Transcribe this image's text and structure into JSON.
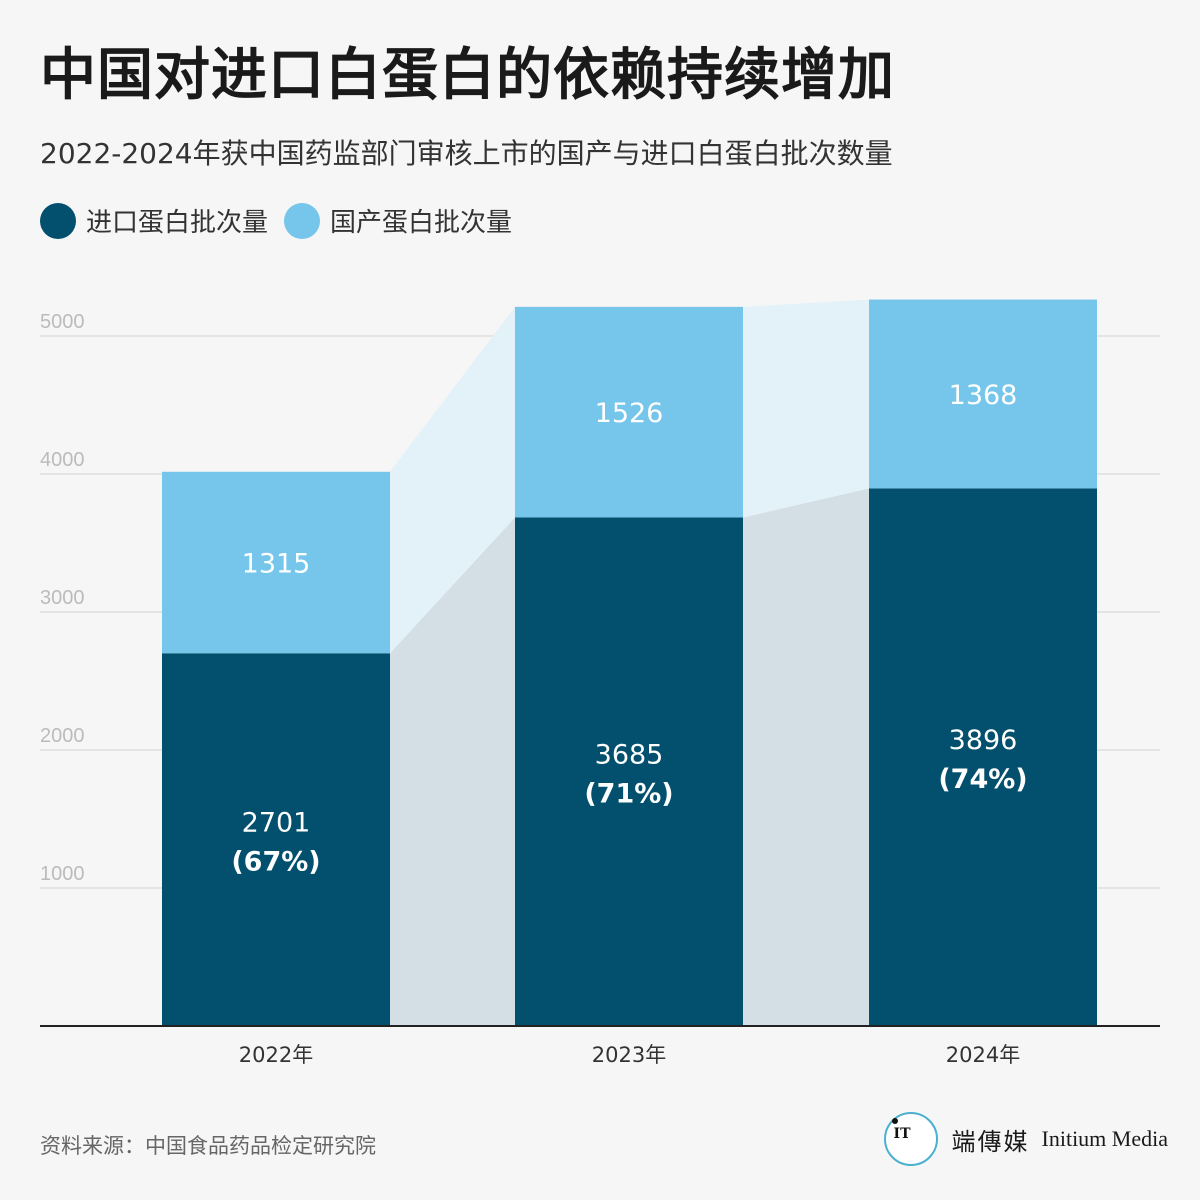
{
  "header": {
    "title": "中国对进口白蛋白的依赖持续增加",
    "subtitle": "2022-2024年获中国药监部门审核上市的国产与进口白蛋白批次数量"
  },
  "legend": {
    "imported": "进口蛋白批次量",
    "domestic": "国产蛋白批次量"
  },
  "colors": {
    "imported": "#02506e",
    "domestic": "#75c6ea",
    "imported_band": "#d3dfe5",
    "domestic_band": "#e3f1f8",
    "axis": "#222222",
    "grid": "#dddddd",
    "tick": "#bbbbbb"
  },
  "chart_data": {
    "type": "bar",
    "stacked": true,
    "categories": [
      "2022年",
      "2023年",
      "2024年"
    ],
    "series": [
      {
        "name": "进口蛋白批次量",
        "values": [
          2701,
          3685,
          3896
        ],
        "labels": [
          "2701",
          "3685",
          "3896"
        ],
        "percent_labels": [
          "(67%)",
          "(71%)",
          "(74%)"
        ]
      },
      {
        "name": "国产蛋白批次量",
        "values": [
          1315,
          1526,
          1368
        ],
        "labels": [
          "1315",
          "1526",
          "1368"
        ]
      }
    ],
    "yticks": [
      1000,
      2000,
      3000,
      4000,
      5000
    ],
    "ylim": [
      0,
      5200
    ],
    "title": "中国对进口白蛋白的依赖持续增加",
    "xlabel": "",
    "ylabel": ""
  },
  "footer": {
    "source": "资料来源：中国食品药品检定研究院",
    "brand_cn": "端傳媒",
    "brand_en": "Initium Media",
    "brand_glyph": "IT"
  }
}
